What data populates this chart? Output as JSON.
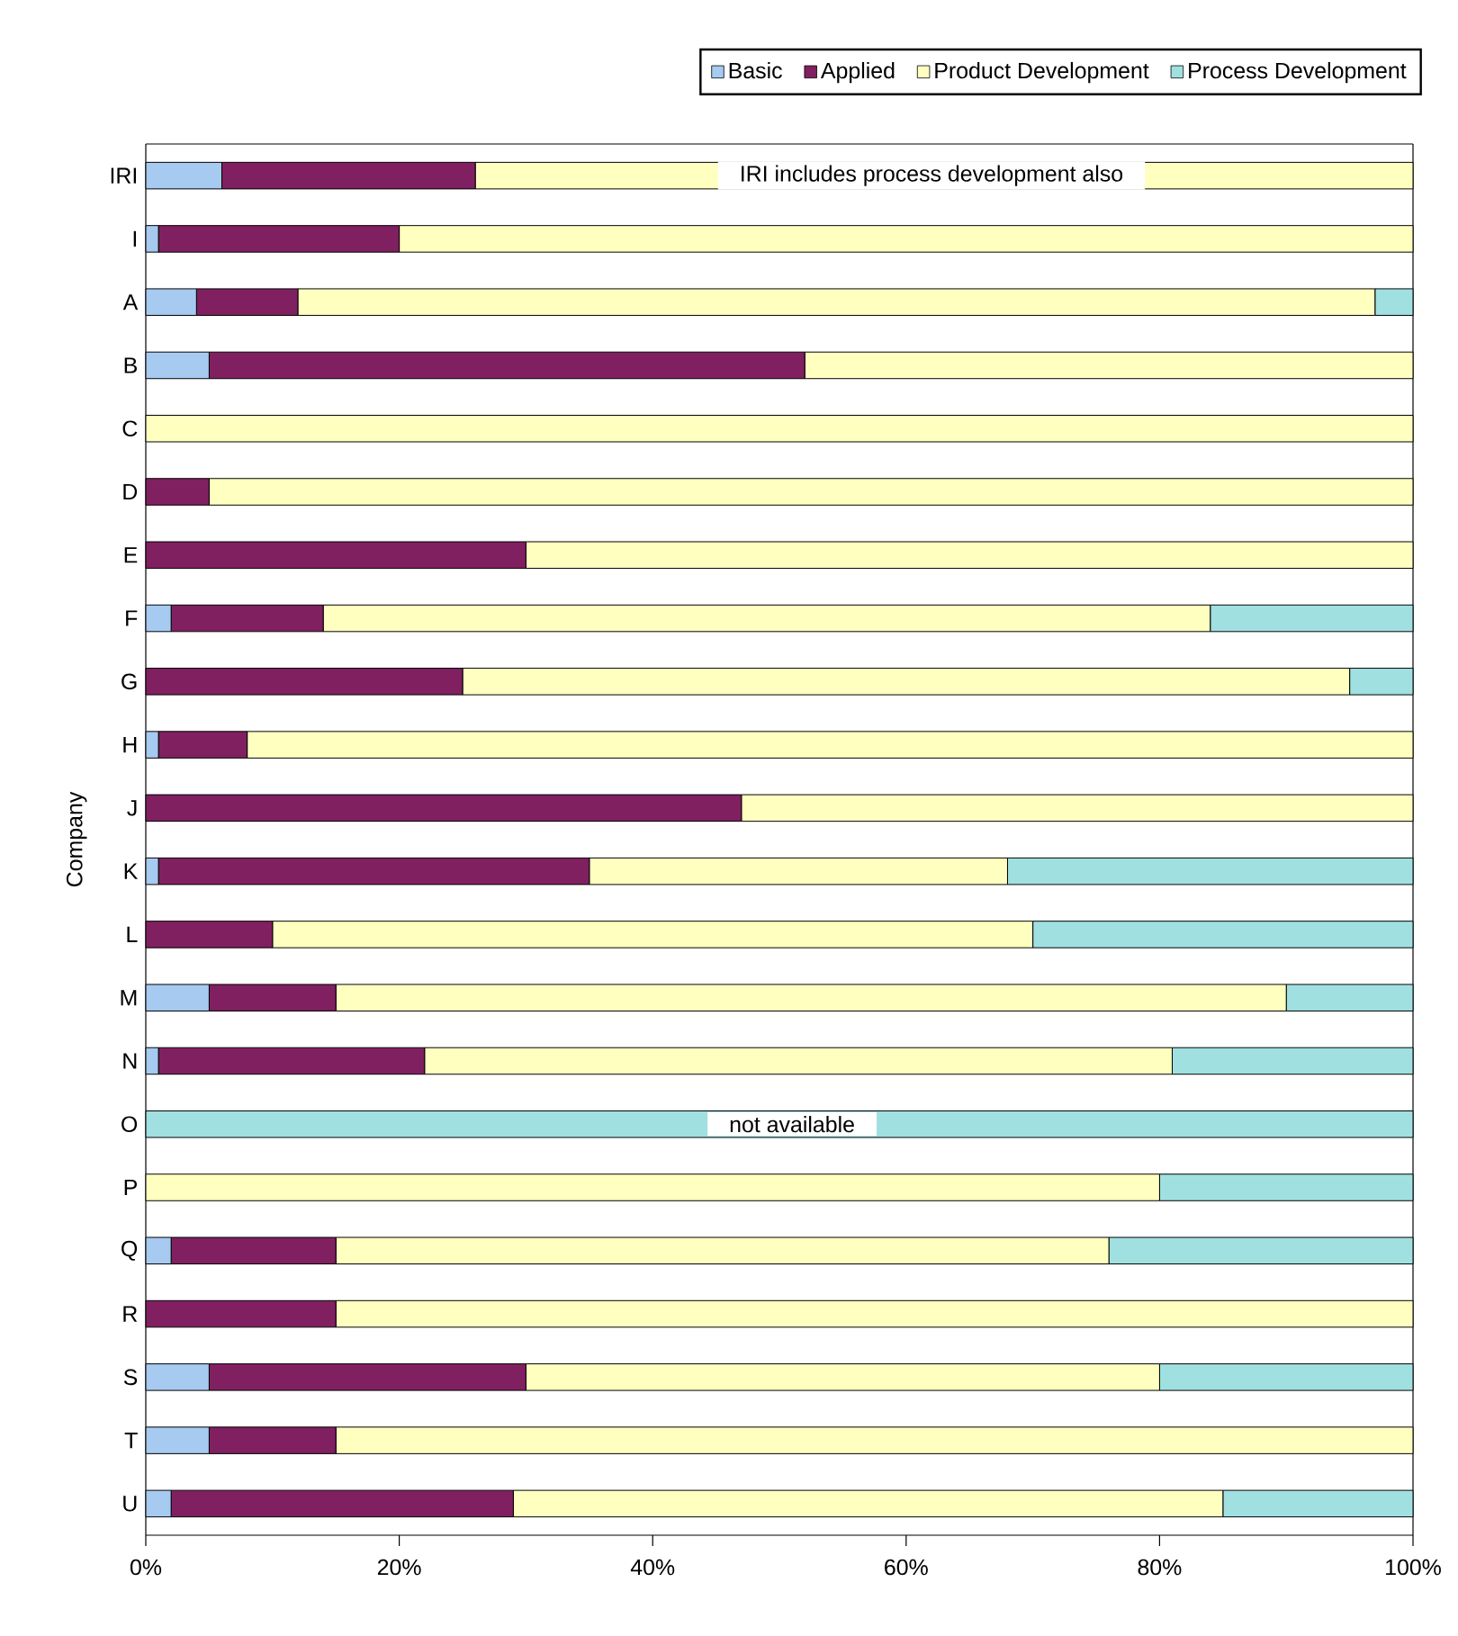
{
  "chart_data": {
    "type": "bar",
    "orientation": "horizontal",
    "stacked": true,
    "ylabel": "Company",
    "categories": [
      "IRI",
      "I",
      "A",
      "B",
      "C",
      "D",
      "E",
      "F",
      "G",
      "H",
      "J",
      "K",
      "L",
      "M",
      "N",
      "O",
      "P",
      "Q",
      "R",
      "S",
      "T",
      "U"
    ],
    "series": [
      {
        "name": "Basic",
        "color": "#a6caf0",
        "values": [
          6,
          1,
          4,
          5,
          0,
          0,
          0,
          2,
          0,
          1,
          0,
          1,
          0,
          5,
          1,
          0,
          0,
          2,
          0,
          5,
          5,
          2
        ]
      },
      {
        "name": "Applied",
        "color": "#802060",
        "values": [
          20,
          19,
          8,
          47,
          0,
          5,
          30,
          12,
          25,
          7,
          47,
          34,
          10,
          10,
          21,
          0,
          0,
          13,
          15,
          25,
          10,
          27
        ]
      },
      {
        "name": "Product Development",
        "color": "#ffffc0",
        "values": [
          74,
          80,
          85,
          48,
          100,
          95,
          70,
          70,
          70,
          92,
          53,
          33,
          60,
          75,
          59,
          0,
          80,
          61,
          85,
          50,
          85,
          56
        ]
      },
      {
        "name": "Process Development",
        "color": "#a0e0e0",
        "values": [
          0,
          0,
          3,
          0,
          0,
          0,
          0,
          16,
          5,
          0,
          0,
          32,
          30,
          10,
          19,
          100,
          20,
          24,
          0,
          20,
          0,
          15
        ]
      }
    ],
    "xlim": [
      0,
      100
    ],
    "xticks": [
      {
        "value": 0,
        "label": "0%"
      },
      {
        "value": 20,
        "label": "20%"
      },
      {
        "value": 40,
        "label": "40%"
      },
      {
        "value": 60,
        "label": "60%"
      },
      {
        "value": 80,
        "label": "80%"
      },
      {
        "value": 100,
        "label": "100%"
      }
    ],
    "legend": "top",
    "annotations": [
      "IRI includes process development also",
      "not available"
    ]
  }
}
